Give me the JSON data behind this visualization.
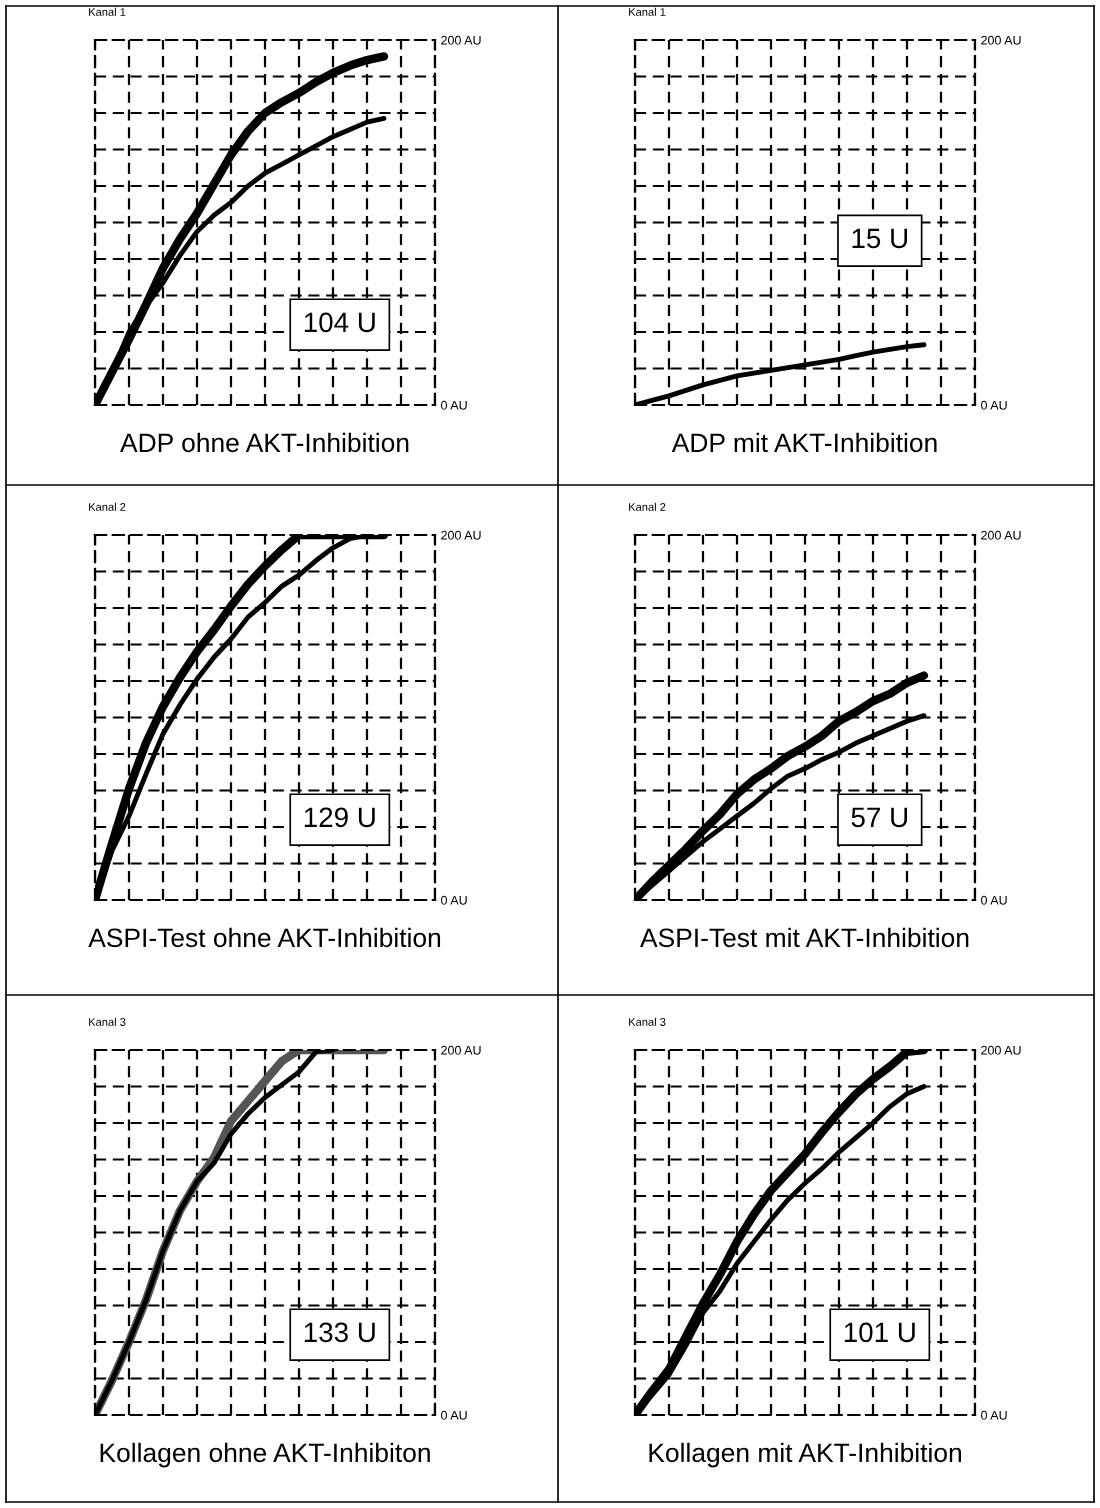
{
  "chart_data": [
    {
      "type": "line",
      "title": "Kanal 1",
      "xlabel": "ADP ohne AKT-Inhibition",
      "annotations": [
        "104 U"
      ],
      "categories": [
        null,
        null,
        null,
        null,
        null,
        null,
        null,
        null,
        null,
        null,
        null,
        null,
        null,
        null,
        null,
        null,
        null,
        null,
        null,
        null,
        null
      ],
      "ylim": [
        0,
        200
      ],
      "yticks": [
        {
          "value": 0,
          "label": "0 AU"
        },
        {
          "value": 20,
          "label": null
        },
        {
          "value": 40,
          "label": null
        },
        {
          "value": 60,
          "label": null
        },
        {
          "value": 80,
          "label": null
        },
        {
          "value": 100,
          "label": null
        },
        {
          "value": 120,
          "label": null
        },
        {
          "value": 140,
          "label": null
        },
        {
          "value": 160,
          "label": null
        },
        {
          "value": 180,
          "label": null
        },
        {
          "value": 200,
          "label": "200 AU"
        }
      ],
      "grid": true,
      "line_style": "solid",
      "series": [
        {
          "color": "#000000",
          "values": [
            0,
            18,
            36,
            55,
            75,
            91,
            105,
            121,
            137,
            150,
            160,
            166,
            171,
            177,
            182,
            186,
            189,
            191,
            null,
            null,
            null
          ]
        },
        {
          "color": "#000000",
          "values": [
            0,
            18,
            40,
            54,
            67,
            82,
            95,
            104,
            111,
            120,
            127,
            132,
            137,
            142,
            147,
            151,
            155,
            157,
            null,
            null,
            null
          ]
        }
      ]
    },
    {
      "type": "line",
      "title": "Kanal 1",
      "xlabel": "ADP mit AKT-Inhibition",
      "annotations": [
        "15 U"
      ],
      "categories": [
        null,
        null,
        null,
        null,
        null,
        null,
        null,
        null,
        null,
        null,
        null,
        null,
        null,
        null,
        null,
        null,
        null,
        null,
        null,
        null,
        null
      ],
      "ylim": [
        0,
        200
      ],
      "yticks": [
        {
          "value": 0,
          "label": "0 AU"
        },
        {
          "value": 20,
          "label": null
        },
        {
          "value": 40,
          "label": null
        },
        {
          "value": 60,
          "label": null
        },
        {
          "value": 80,
          "label": null
        },
        {
          "value": 100,
          "label": null
        },
        {
          "value": 120,
          "label": null
        },
        {
          "value": 140,
          "label": null
        },
        {
          "value": 160,
          "label": null
        },
        {
          "value": 180,
          "label": null
        },
        {
          "value": 200,
          "label": "200 AU"
        }
      ],
      "grid": true,
      "line_style": "solid",
      "series": [
        {
          "color": "#000000",
          "values": [
            0,
            2.5,
            5,
            8,
            11,
            13.5,
            16,
            17.5,
            19,
            20.5,
            22,
            23.5,
            25,
            27,
            29,
            30.5,
            32,
            33,
            null,
            null,
            null
          ]
        }
      ]
    },
    {
      "type": "line",
      "title": "Kanal 2",
      "xlabel": "ASPI-Test ohne AKT-Inhibition",
      "annotations": [
        "129 U"
      ],
      "categories": [
        null,
        null,
        null,
        null,
        null,
        null,
        null,
        null,
        null,
        null,
        null,
        null,
        null,
        null,
        null,
        null,
        null,
        null,
        null,
        null,
        null
      ],
      "ylim": [
        0,
        200
      ],
      "yticks": [
        {
          "value": 0,
          "label": "0 AU"
        },
        {
          "value": 20,
          "label": null
        },
        {
          "value": 40,
          "label": null
        },
        {
          "value": 60,
          "label": null
        },
        {
          "value": 80,
          "label": null
        },
        {
          "value": 100,
          "label": null
        },
        {
          "value": 120,
          "label": null
        },
        {
          "value": 140,
          "label": null
        },
        {
          "value": 160,
          "label": null
        },
        {
          "value": 180,
          "label": null
        },
        {
          "value": 200,
          "label": "200 AU"
        }
      ],
      "grid": true,
      "line_style": "solid",
      "series": [
        {
          "color": "#000000",
          "values": [
            0,
            31,
            61,
            86,
            106,
            122,
            136,
            148,
            161,
            173,
            183,
            192,
            200,
            200,
            200,
            200,
            200,
            200,
            null,
            null,
            null
          ]
        },
        {
          "color": "#000000",
          "values": [
            0,
            27,
            46,
            69,
            91,
            107,
            121,
            133,
            143,
            155,
            163,
            172,
            178,
            186,
            193,
            198,
            200,
            null,
            null,
            null,
            null
          ]
        }
      ]
    },
    {
      "type": "line",
      "title": "Kanal 2",
      "xlabel": "ASPI-Test mit AKT-Inhibition",
      "annotations": [
        "57 U"
      ],
      "categories": [
        null,
        null,
        null,
        null,
        null,
        null,
        null,
        null,
        null,
        null,
        null,
        null,
        null,
        null,
        null,
        null,
        null,
        null,
        null,
        null,
        null
      ],
      "ylim": [
        0,
        200
      ],
      "yticks": [
        {
          "value": 0,
          "label": "0 AU"
        },
        {
          "value": 20,
          "label": null
        },
        {
          "value": 40,
          "label": null
        },
        {
          "value": 60,
          "label": null
        },
        {
          "value": 80,
          "label": null
        },
        {
          "value": 100,
          "label": null
        },
        {
          "value": 120,
          "label": null
        },
        {
          "value": 140,
          "label": null
        },
        {
          "value": 160,
          "label": null
        },
        {
          "value": 180,
          "label": null
        },
        {
          "value": 200,
          "label": "200 AU"
        }
      ],
      "grid": true,
      "line_style": "solid",
      "series": [
        {
          "color": "#000000",
          "values": [
            0,
            10,
            19,
            28,
            38,
            47,
            58,
            66,
            72,
            79,
            84,
            90,
            98,
            103,
            109,
            113,
            119,
            123,
            null,
            null,
            null
          ]
        },
        {
          "color": "#000000",
          "values": [
            0,
            8,
            16,
            24,
            32,
            39,
            46,
            53,
            61,
            68,
            72,
            77,
            81,
            86,
            90,
            94,
            98,
            101,
            null,
            null,
            null
          ]
        }
      ]
    },
    {
      "type": "line",
      "title": "Kanal 3",
      "xlabel": "Kollagen ohne AKT-Inhibiton",
      "annotations": [
        "133 U"
      ],
      "categories": [
        null,
        null,
        null,
        null,
        null,
        null,
        null,
        null,
        null,
        null,
        null,
        null,
        null,
        null,
        null,
        null,
        null,
        null,
        null,
        null,
        null
      ],
      "ylim": [
        0,
        200
      ],
      "yticks": [
        {
          "value": 0,
          "label": "0 AU"
        },
        {
          "value": 20,
          "label": null
        },
        {
          "value": 40,
          "label": null
        },
        {
          "value": 60,
          "label": null
        },
        {
          "value": 80,
          "label": null
        },
        {
          "value": 100,
          "label": null
        },
        {
          "value": 120,
          "label": null
        },
        {
          "value": 140,
          "label": null
        },
        {
          "value": 160,
          "label": null
        },
        {
          "value": 180,
          "label": null
        },
        {
          "value": 200,
          "label": "200 AU"
        }
      ],
      "grid": true,
      "line_style": "solid",
      "series": [
        {
          "color": "#555555",
          "values": [
            0,
            19,
            40,
            63,
            90,
            112,
            128,
            141,
            161,
            172,
            183,
            194,
            200,
            200,
            200,
            200,
            200,
            200,
            null,
            null,
            null
          ]
        },
        {
          "color": "#000000",
          "values": [
            0,
            19,
            40,
            63,
            90,
            112,
            128,
            138,
            154,
            165,
            174,
            181,
            188,
            199,
            200,
            null,
            null,
            null,
            null,
            null,
            null
          ]
        }
      ]
    },
    {
      "type": "line",
      "title": "Kanal 3",
      "xlabel": "Kollagen mit AKT-Inhibition",
      "annotations": [
        "101 U"
      ],
      "categories": [
        null,
        null,
        null,
        null,
        null,
        null,
        null,
        null,
        null,
        null,
        null,
        null,
        null,
        null,
        null,
        null,
        null,
        null,
        null,
        null,
        null
      ],
      "ylim": [
        0,
        200
      ],
      "yticks": [
        {
          "value": 0,
          "label": "0 AU"
        },
        {
          "value": 20,
          "label": null
        },
        {
          "value": 40,
          "label": null
        },
        {
          "value": 60,
          "label": null
        },
        {
          "value": 80,
          "label": null
        },
        {
          "value": 100,
          "label": null
        },
        {
          "value": 120,
          "label": null
        },
        {
          "value": 140,
          "label": null
        },
        {
          "value": 160,
          "label": null
        },
        {
          "value": 180,
          "label": null
        },
        {
          "value": 200,
          "label": "200 AU"
        }
      ],
      "grid": true,
      "line_style": "solid",
      "series": [
        {
          "color": "#000000",
          "values": [
            0,
            13,
            25,
            43,
            61,
            77,
            95,
            110,
            123,
            133,
            143,
            155,
            166,
            176,
            184,
            191,
            199,
            200,
            null,
            null,
            null
          ]
        },
        {
          "color": "#000000",
          "values": [
            0,
            11,
            22,
            38,
            56,
            68,
            83,
            95,
            107,
            118,
            127,
            135,
            144,
            152,
            160,
            169,
            176,
            180,
            null,
            null,
            null
          ]
        }
      ]
    }
  ]
}
